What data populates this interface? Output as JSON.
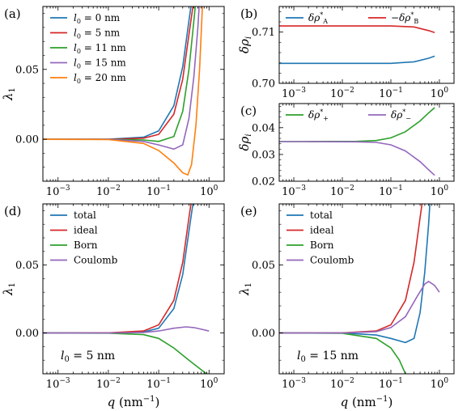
{
  "chart_data": [
    {
      "panel": "(a)",
      "type": "line",
      "xscale": "log",
      "xlim": [
        0.0005,
        2
      ],
      "ylim": [
        -0.03,
        0.095
      ],
      "ylabel": "λ1",
      "xticks": [
        "10−3",
        "10−2",
        "10−1",
        "100"
      ],
      "yticks": [
        "0.00",
        "0.05"
      ],
      "legend_loc": "top-left",
      "series": [
        {
          "name": "l0 = 0 nm",
          "color": "#1f77b4",
          "points": [
            [
              0.0005,
              0
            ],
            [
              0.01,
              0.0001
            ],
            [
              0.05,
              0.0015
            ],
            [
              0.1,
              0.006
            ],
            [
              0.2,
              0.024
            ],
            [
              0.3,
              0.052
            ],
            [
              0.4,
              0.085
            ],
            [
              0.45,
              0.098
            ]
          ]
        },
        {
          "name": "l0 = 5 nm",
          "color": "#d62728",
          "points": [
            [
              0.0005,
              0
            ],
            [
              0.01,
              0
            ],
            [
              0.05,
              0.0008
            ],
            [
              0.1,
              0.0035
            ],
            [
              0.2,
              0.018
            ],
            [
              0.3,
              0.043
            ],
            [
              0.4,
              0.075
            ],
            [
              0.5,
              0.1
            ]
          ]
        },
        {
          "name": "l0 = 11 nm",
          "color": "#2ca02c",
          "points": [
            [
              0.0005,
              0
            ],
            [
              0.01,
              0
            ],
            [
              0.05,
              -0.0005
            ],
            [
              0.1,
              -0.0015
            ],
            [
              0.2,
              0.002
            ],
            [
              0.3,
              0.02
            ],
            [
              0.4,
              0.05
            ],
            [
              0.5,
              0.085
            ],
            [
              0.55,
              0.1
            ]
          ]
        },
        {
          "name": "l0 = 15 nm",
          "color": "#9467bd",
          "points": [
            [
              0.0005,
              0
            ],
            [
              0.01,
              0
            ],
            [
              0.05,
              -0.0015
            ],
            [
              0.1,
              -0.004
            ],
            [
              0.2,
              -0.007
            ],
            [
              0.3,
              -0.004
            ],
            [
              0.4,
              0.015
            ],
            [
              0.5,
              0.045
            ],
            [
              0.6,
              0.08
            ],
            [
              0.65,
              0.1
            ]
          ]
        },
        {
          "name": "l0 = 20 nm",
          "color": "#ff7f0e",
          "points": [
            [
              0.0005,
              0
            ],
            [
              0.01,
              -0.0002
            ],
            [
              0.05,
              -0.003
            ],
            [
              0.1,
              -0.008
            ],
            [
              0.2,
              -0.017
            ],
            [
              0.3,
              -0.024
            ],
            [
              0.38,
              -0.0255
            ],
            [
              0.45,
              -0.018
            ],
            [
              0.55,
              0.01
            ],
            [
              0.65,
              0.05
            ],
            [
              0.75,
              0.1
            ]
          ]
        }
      ]
    },
    {
      "panel": "(b)",
      "type": "line",
      "xscale": "log",
      "xlim": [
        0.0005,
        2
      ],
      "ylim": [
        0.7,
        0.715
      ],
      "ylabel": "δρi",
      "xticks": [
        "10−3",
        "10−2",
        "10−1",
        "100"
      ],
      "yticks": [
        "0.70",
        "0.71"
      ],
      "legend_loc": "top",
      "series": [
        {
          "name": "δρA*",
          "color": "#1f77b4",
          "points": [
            [
              0.0005,
              0.7039
            ],
            [
              0.1,
              0.7039
            ],
            [
              0.3,
              0.7042
            ],
            [
              0.6,
              0.7049
            ],
            [
              0.8,
              0.7053
            ]
          ]
        },
        {
          "name": "−δρB*",
          "color": "#d62728",
          "points": [
            [
              0.0005,
              0.7112
            ],
            [
              0.1,
              0.7112
            ],
            [
              0.3,
              0.711
            ],
            [
              0.6,
              0.7103
            ],
            [
              0.8,
              0.7099
            ]
          ]
        }
      ]
    },
    {
      "panel": "(c)",
      "type": "line",
      "xscale": "log",
      "xlim": [
        0.0005,
        2
      ],
      "ylim": [
        0.02,
        0.049
      ],
      "ylabel": "δρi",
      "xticks": [
        "10−3",
        "10−2",
        "10−1",
        "100"
      ],
      "yticks": [
        "0.02",
        "0.03",
        "0.04"
      ],
      "legend_loc": "top",
      "series": [
        {
          "name": "δρ+*",
          "color": "#2ca02c",
          "points": [
            [
              0.0005,
              0.0348
            ],
            [
              0.02,
              0.0349
            ],
            [
              0.05,
              0.0352
            ],
            [
              0.1,
              0.0362
            ],
            [
              0.2,
              0.0385
            ],
            [
              0.4,
              0.0425
            ],
            [
              0.6,
              0.0455
            ],
            [
              0.8,
              0.0475
            ]
          ]
        },
        {
          "name": "δρ−*",
          "color": "#9467bd",
          "points": [
            [
              0.0005,
              0.0348
            ],
            [
              0.02,
              0.0347
            ],
            [
              0.05,
              0.0345
            ],
            [
              0.1,
              0.0336
            ],
            [
              0.2,
              0.0313
            ],
            [
              0.4,
              0.0273
            ],
            [
              0.6,
              0.0243
            ],
            [
              0.8,
              0.0222
            ]
          ]
        }
      ]
    },
    {
      "panel": "(d)",
      "type": "line",
      "xscale": "log",
      "xlim": [
        0.0005,
        2
      ],
      "ylim": [
        -0.03,
        0.095
      ],
      "xlabel": "q (nm−1)",
      "ylabel": "λ1",
      "annotation": "l0 = 5 nm",
      "xticks": [
        "10−3",
        "10−2",
        "10−1",
        "100"
      ],
      "yticks": [
        "0.00",
        "0.05"
      ],
      "legend_loc": "top-left",
      "series": [
        {
          "name": "total",
          "color": "#1f77b4",
          "points": [
            [
              0.0005,
              0
            ],
            [
              0.01,
              0
            ],
            [
              0.05,
              0.0008
            ],
            [
              0.1,
              0.0035
            ],
            [
              0.2,
              0.018
            ],
            [
              0.3,
              0.043
            ],
            [
              0.4,
              0.075
            ],
            [
              0.5,
              0.1
            ]
          ]
        },
        {
          "name": "ideal",
          "color": "#d62728",
          "points": [
            [
              0.0005,
              0
            ],
            [
              0.01,
              0.0001
            ],
            [
              0.05,
              0.0015
            ],
            [
              0.1,
              0.006
            ],
            [
              0.2,
              0.024
            ],
            [
              0.3,
              0.052
            ],
            [
              0.4,
              0.085
            ],
            [
              0.45,
              0.098
            ]
          ]
        },
        {
          "name": "Born",
          "color": "#2ca02c",
          "points": [
            [
              0.0005,
              0
            ],
            [
              0.01,
              -0.0001
            ],
            [
              0.05,
              -0.0012
            ],
            [
              0.1,
              -0.004
            ],
            [
              0.2,
              -0.011
            ],
            [
              0.4,
              -0.02
            ],
            [
              0.7,
              -0.027
            ],
            [
              0.9,
              -0.03
            ]
          ]
        },
        {
          "name": "Coulomb",
          "color": "#9467bd",
          "points": [
            [
              0.0005,
              0
            ],
            [
              0.01,
              0
            ],
            [
              0.05,
              0.0004
            ],
            [
              0.1,
              0.0015
            ],
            [
              0.2,
              0.0035
            ],
            [
              0.35,
              0.0045
            ],
            [
              0.5,
              0.004
            ],
            [
              0.7,
              0.0028
            ],
            [
              1.0,
              0.0015
            ]
          ]
        }
      ]
    },
    {
      "panel": "(e)",
      "type": "line",
      "xscale": "log",
      "xlim": [
        0.0005,
        2
      ],
      "ylim": [
        -0.03,
        0.095
      ],
      "xlabel": "q (nm−1)",
      "ylabel": "λ1",
      "annotation": "l0 = 15 nm",
      "xticks": [
        "10−3",
        "10−2",
        "10−1",
        "100"
      ],
      "yticks": [
        "0.00",
        "0.05"
      ],
      "legend_loc": "top-left",
      "series": [
        {
          "name": "total",
          "color": "#1f77b4",
          "points": [
            [
              0.0005,
              0
            ],
            [
              0.01,
              0
            ],
            [
              0.05,
              -0.0015
            ],
            [
              0.1,
              -0.004
            ],
            [
              0.2,
              -0.007
            ],
            [
              0.3,
              -0.004
            ],
            [
              0.4,
              0.015
            ],
            [
              0.5,
              0.045
            ],
            [
              0.6,
              0.08
            ],
            [
              0.65,
              0.1
            ]
          ]
        },
        {
          "name": "ideal",
          "color": "#d62728",
          "points": [
            [
              0.0005,
              0
            ],
            [
              0.01,
              0.0001
            ],
            [
              0.05,
              0.0015
            ],
            [
              0.1,
              0.006
            ],
            [
              0.2,
              0.024
            ],
            [
              0.3,
              0.052
            ],
            [
              0.4,
              0.085
            ],
            [
              0.45,
              0.098
            ]
          ]
        },
        {
          "name": "Born",
          "color": "#2ca02c",
          "points": [
            [
              0.0005,
              0
            ],
            [
              0.01,
              -0.0002
            ],
            [
              0.05,
              -0.004
            ],
            [
              0.1,
              -0.011
            ],
            [
              0.15,
              -0.02
            ],
            [
              0.2,
              -0.03
            ]
          ]
        },
        {
          "name": "Coulomb",
          "color": "#9467bd",
          "points": [
            [
              0.0005,
              0
            ],
            [
              0.01,
              0
            ],
            [
              0.05,
              0.001
            ],
            [
              0.1,
              0.004
            ],
            [
              0.2,
              0.012
            ],
            [
              0.35,
              0.027
            ],
            [
              0.5,
              0.036
            ],
            [
              0.6,
              0.038
            ],
            [
              0.8,
              0.035
            ],
            [
              1.0,
              0.03
            ]
          ]
        }
      ]
    }
  ]
}
